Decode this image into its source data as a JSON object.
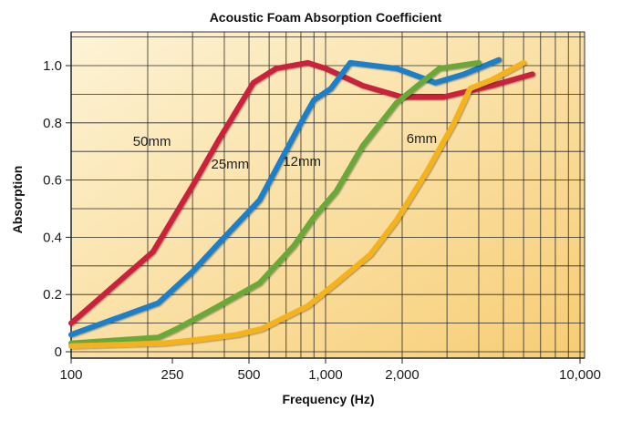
{
  "chart_data": {
    "type": "line",
    "title": "Acoustic Foam Absorption Coefficient",
    "xlabel": "Frequency (Hz)",
    "ylabel": "Absorption",
    "x_scale": "log",
    "xlim": [
      100,
      10000
    ],
    "ylim": [
      0,
      1.1
    ],
    "x_ticks": [
      100,
      250,
      500,
      1000,
      2000,
      10000
    ],
    "x_tick_labels": [
      "100",
      "250",
      "500",
      "1,000",
      "2,000",
      "10,000"
    ],
    "y_ticks": [
      0,
      0.2,
      0.4,
      0.6,
      0.8,
      1.0
    ],
    "y_tick_labels": [
      "0",
      "0.2",
      "0.4",
      "0.6",
      "0.8",
      "1.0"
    ],
    "grid": true,
    "legend": "none",
    "background_gradient": [
      "#fdf3d6",
      "#f7cd74"
    ],
    "series": [
      {
        "name": "50mm",
        "color": "#c8233c",
        "label_at": [
          175,
          0.72
        ],
        "points": [
          [
            100,
            0.1
          ],
          [
            210,
            0.35
          ],
          [
            300,
            0.58
          ],
          [
            380,
            0.74
          ],
          [
            520,
            0.94
          ],
          [
            640,
            0.99
          ],
          [
            850,
            1.01
          ],
          [
            1000,
            0.99
          ],
          [
            1400,
            0.93
          ],
          [
            2000,
            0.89
          ],
          [
            2900,
            0.89
          ],
          [
            3600,
            0.91
          ],
          [
            4500,
            0.93
          ],
          [
            6500,
            0.97
          ]
        ]
      },
      {
        "name": "25mm",
        "color": "#1f7fc8",
        "label_at": [
          355,
          0.64
        ],
        "points": [
          [
            100,
            0.06
          ],
          [
            220,
            0.17
          ],
          [
            300,
            0.28
          ],
          [
            400,
            0.4
          ],
          [
            550,
            0.53
          ],
          [
            800,
            0.8
          ],
          [
            900,
            0.88
          ],
          [
            1050,
            0.92
          ],
          [
            1250,
            1.01
          ],
          [
            1900,
            0.99
          ],
          [
            2700,
            0.94
          ],
          [
            3500,
            0.97
          ],
          [
            4800,
            1.02
          ]
        ]
      },
      {
        "name": "12mm",
        "color": "#6aa83a",
        "label_at": [
          680,
          0.65
        ],
        "points": [
          [
            100,
            0.03
          ],
          [
            220,
            0.05
          ],
          [
            260,
            0.08
          ],
          [
            380,
            0.16
          ],
          [
            550,
            0.24
          ],
          [
            750,
            0.37
          ],
          [
            900,
            0.47
          ],
          [
            1100,
            0.56
          ],
          [
            1400,
            0.72
          ],
          [
            1900,
            0.87
          ],
          [
            2300,
            0.93
          ],
          [
            2800,
            0.99
          ],
          [
            4000,
            1.01
          ]
        ]
      },
      {
        "name": "6mm",
        "color": "#f4b21d",
        "label_at": [
          2080,
          0.73
        ],
        "points": [
          [
            100,
            0.02
          ],
          [
            230,
            0.03
          ],
          [
            300,
            0.04
          ],
          [
            450,
            0.06
          ],
          [
            560,
            0.08
          ],
          [
            850,
            0.16
          ],
          [
            1100,
            0.24
          ],
          [
            1500,
            0.34
          ],
          [
            1900,
            0.46
          ],
          [
            2500,
            0.63
          ],
          [
            3200,
            0.8
          ],
          [
            3700,
            0.92
          ],
          [
            4500,
            0.95
          ],
          [
            6000,
            1.01
          ]
        ]
      }
    ]
  }
}
